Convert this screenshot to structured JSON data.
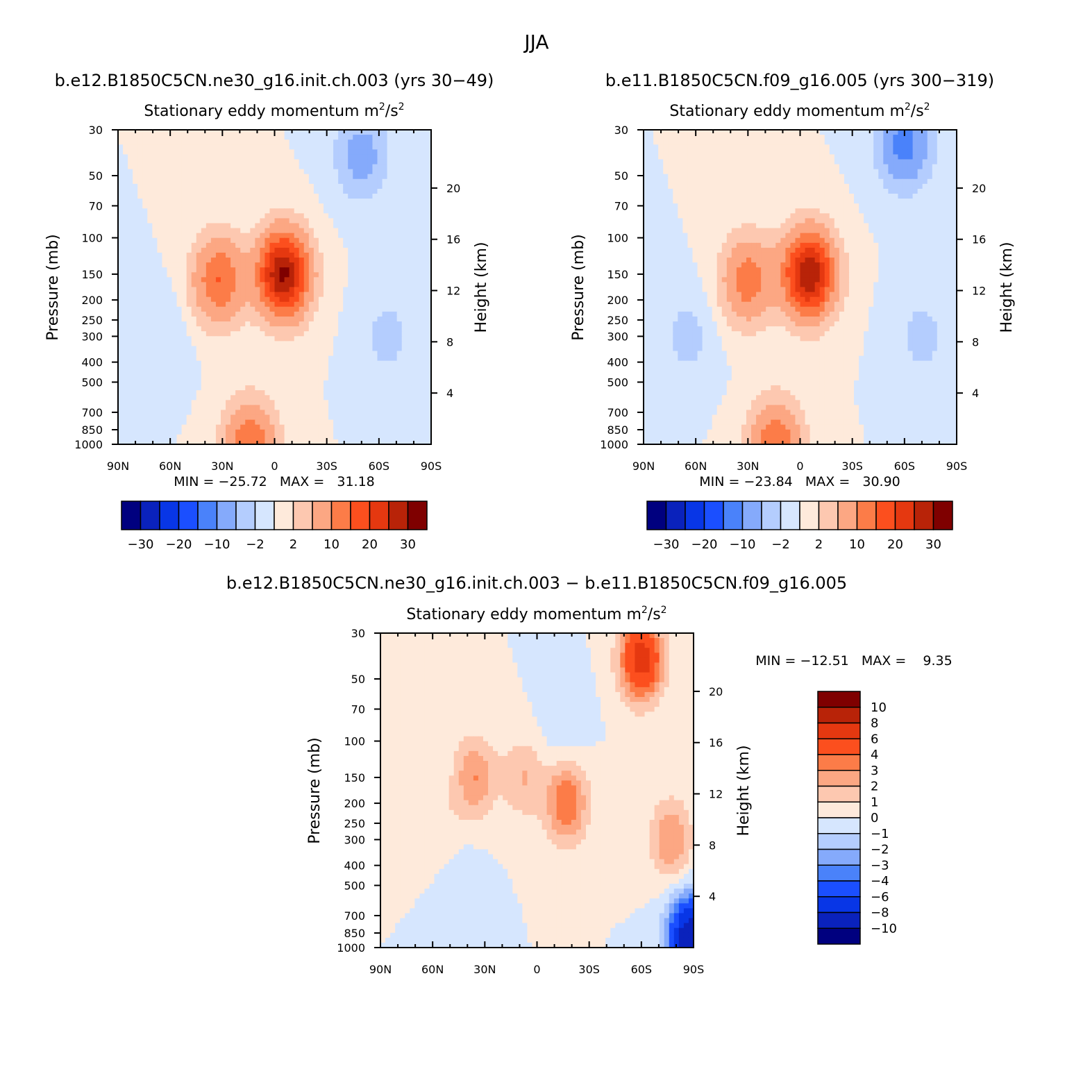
{
  "figure": {
    "title": "JJA",
    "diff_title": "b.e12.B1850C5CN.ne30_g16.init.ch.003 − b.e11.B1850C5CN.f09_g16.005"
  },
  "panels": [
    {
      "subtitle": "b.e12.B1850C5CN.ne30_g16.init.ch.003 (yrs 30−49)",
      "plot_title": "Stationary eddy momentum",
      "units_base": "m",
      "units_exp1": "2",
      "units_sep": "/s",
      "units_exp2": "2",
      "ylabel": "Pressure (mb)",
      "ylabel2": "Height (km)",
      "stats": "MIN = −25.72   MAX =   31.18",
      "colorbar_labels": [
        "−30",
        "−20",
        "−10",
        "−2",
        "2",
        "10",
        "20",
        "30"
      ]
    },
    {
      "subtitle": "b.e11.B1850C5CN.f09_g16.005 (yrs 300−319)",
      "plot_title": "Stationary eddy momentum",
      "units_base": "m",
      "units_exp1": "2",
      "units_sep": "/s",
      "units_exp2": "2",
      "ylabel": "Pressure (mb)",
      "ylabel2": "Height (km)",
      "stats": "MIN = −23.84   MAX =   30.90",
      "colorbar_labels": [
        "−30",
        "−20",
        "−10",
        "−2",
        "2",
        "10",
        "20",
        "30"
      ]
    },
    {
      "plot_title": "Stationary eddy momentum",
      "units_base": "m",
      "units_exp1": "2",
      "units_sep": "/s",
      "units_exp2": "2",
      "ylabel": "Pressure (mb)",
      "ylabel2": "Height (km)",
      "stats": "MIN = −12.51   MAX =    9.35",
      "colorbar_labels": [
        "10",
        "8",
        "6",
        "4",
        "3",
        "2",
        "1",
        "0",
        "−1",
        "−2",
        "−3",
        "−4",
        "−6",
        "−8",
        "−10"
      ]
    }
  ],
  "axes": {
    "x_ticks": [
      "90N",
      "60N",
      "30N",
      "0",
      "30S",
      "60S",
      "90S"
    ],
    "y_ticks": [
      "30",
      "50",
      "70",
      "100",
      "150",
      "200",
      "250",
      "300",
      "400",
      "500",
      "700",
      "850",
      "1000"
    ],
    "height_ticks": [
      "20",
      "16",
      "12",
      "8",
      "4"
    ]
  },
  "colors": {
    "main_scale": [
      "#00007f",
      "#0a22bc",
      "#0836e6",
      "#1b4fff",
      "#4a82fa",
      "#85aafb",
      "#b4cdfe",
      "#d6e6fe",
      "#feeadb",
      "#fdc8b0",
      "#fca783",
      "#fc7c48",
      "#fc4f1e",
      "#e53810",
      "#b82308",
      "#7f0000"
    ],
    "diff_scale": [
      "#7f0000",
      "#b82308",
      "#e53810",
      "#fc4f1e",
      "#fc7c48",
      "#fca783",
      "#fdc8b0",
      "#feeadb",
      "#d6e6fe",
      "#b4cdfe",
      "#85aafb",
      "#4a82fa",
      "#1b4fff",
      "#0836e6",
      "#0a22bc",
      "#00007f"
    ]
  },
  "chart_data": [
    {
      "type": "heatmap",
      "title": "Stationary eddy momentum",
      "subtitle": "b.e12.B1850C5CN.ne30_g16.init.ch.003 (yrs 30−49)",
      "units": "m^2/s^2",
      "xlabel": "",
      "ylabel": "Pressure (mb)",
      "ylabel_right": "Height (km)",
      "x_ticks": [
        "90N",
        "60N",
        "30N",
        "0",
        "30S",
        "60S",
        "90S"
      ],
      "y_ticks_mb": [
        30,
        50,
        70,
        100,
        150,
        200,
        250,
        300,
        400,
        500,
        700,
        850,
        1000
      ],
      "height_ticks_km": [
        20,
        16,
        12,
        8,
        4
      ],
      "y_scale": "log",
      "levels": [
        -30,
        -25,
        -20,
        -15,
        -10,
        -5,
        -2,
        0,
        2,
        5,
        10,
        15,
        20,
        25,
        30
      ],
      "min": -25.72,
      "max": 31.18,
      "features": [
        {
          "lat": -5,
          "p": 150,
          "value": 31,
          "sign": "positive"
        },
        {
          "lat": 32,
          "p": 160,
          "value": 15,
          "sign": "positive"
        },
        {
          "lat": 14,
          "p": 990,
          "value": 14,
          "sign": "positive"
        },
        {
          "lat": -50,
          "p": 40,
          "value": -7,
          "sign": "negative"
        },
        {
          "lat": -65,
          "p": 300,
          "value": -3,
          "sign": "negative"
        },
        {
          "lat": 65,
          "p": 300,
          "value": -2,
          "sign": "negative"
        }
      ]
    },
    {
      "type": "heatmap",
      "title": "Stationary eddy momentum",
      "subtitle": "b.e11.B1850C5CN.f09_g16.005 (yrs 300−319)",
      "units": "m^2/s^2",
      "xlabel": "",
      "ylabel": "Pressure (mb)",
      "ylabel_right": "Height (km)",
      "x_ticks": [
        "90N",
        "60N",
        "30N",
        "0",
        "30S",
        "60S",
        "90S"
      ],
      "y_ticks_mb": [
        30,
        50,
        70,
        100,
        150,
        200,
        250,
        300,
        400,
        500,
        700,
        850,
        1000
      ],
      "height_ticks_km": [
        20,
        16,
        12,
        8,
        4
      ],
      "y_scale": "log",
      "levels": [
        -30,
        -25,
        -20,
        -15,
        -10,
        -5,
        -2,
        0,
        2,
        5,
        10,
        15,
        20,
        25,
        30
      ],
      "min": -23.84,
      "max": 30.9,
      "features": [
        {
          "lat": -5,
          "p": 150,
          "value": 30,
          "sign": "positive"
        },
        {
          "lat": 30,
          "p": 160,
          "value": 13,
          "sign": "positive"
        },
        {
          "lat": 14,
          "p": 990,
          "value": 14,
          "sign": "positive"
        },
        {
          "lat": -60,
          "p": 35,
          "value": -12,
          "sign": "negative"
        },
        {
          "lat": -70,
          "p": 300,
          "value": -3,
          "sign": "negative"
        },
        {
          "lat": 65,
          "p": 300,
          "value": -3,
          "sign": "negative"
        }
      ]
    },
    {
      "type": "heatmap",
      "title": "Stationary eddy momentum",
      "subtitle": "b.e12.B1850C5CN.ne30_g16.init.ch.003 − b.e11.B1850C5CN.f09_g16.005",
      "units": "m^2/s^2",
      "xlabel": "",
      "ylabel": "Pressure (mb)",
      "ylabel_right": "Height (km)",
      "x_ticks": [
        "90N",
        "60N",
        "30N",
        "0",
        "30S",
        "60S",
        "90S"
      ],
      "y_ticks_mb": [
        30,
        50,
        70,
        100,
        150,
        200,
        250,
        300,
        400,
        500,
        700,
        850,
        1000
      ],
      "height_ticks_km": [
        20,
        16,
        12,
        8,
        4
      ],
      "y_scale": "log",
      "levels": [
        -10,
        -8,
        -6,
        -4,
        -3,
        -2,
        -1,
        0,
        1,
        2,
        3,
        4,
        6,
        8,
        10
      ],
      "min": -12.51,
      "max": 9.35,
      "features": [
        {
          "lat": -60,
          "p": 40,
          "value": 7,
          "sign": "positive"
        },
        {
          "lat": -17,
          "p": 200,
          "value": 4,
          "sign": "positive"
        },
        {
          "lat": 36,
          "p": 150,
          "value": 3,
          "sign": "positive"
        },
        {
          "lat": 8,
          "p": 150,
          "value": 2,
          "sign": "positive"
        },
        {
          "lat": -77,
          "p": 300,
          "value": 3,
          "sign": "positive"
        },
        {
          "lat": 55,
          "p": 280,
          "value": 1,
          "sign": "positive"
        },
        {
          "lat": -15,
          "p": 80,
          "value": -1,
          "sign": "negative"
        },
        {
          "lat": 45,
          "p": 500,
          "value": -1,
          "sign": "negative"
        },
        {
          "lat": -88,
          "p": 900,
          "value": -10,
          "sign": "negative"
        }
      ]
    }
  ]
}
